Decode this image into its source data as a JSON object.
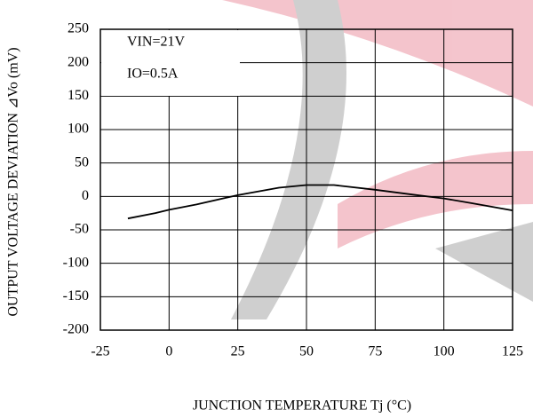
{
  "chart_data": {
    "type": "line",
    "x_label": "JUNCTION TEMPERATURE Tj (°C)",
    "y_label": "OUTPUT VOLTAGE DEVIATION ⊿Vo (mV)",
    "annotations": [
      "VIN=21V",
      "IO=0.5A"
    ],
    "x": [
      -15,
      -5,
      0,
      10,
      25,
      40,
      50,
      60,
      75,
      90,
      100,
      110,
      125
    ],
    "series": [
      {
        "color": "#000000",
        "values": [
          -33,
          -25,
          -20,
          -12,
          2,
          13,
          17,
          17,
          10,
          2,
          -3,
          -10,
          -21
        ]
      }
    ],
    "xlim": [
      -25,
      125
    ],
    "xticks": [
      -25,
      0,
      25,
      50,
      75,
      100,
      125
    ],
    "ylim": [
      -200,
      250
    ],
    "yticks": [
      -200,
      -150,
      -100,
      -50,
      0,
      50,
      100,
      150,
      200,
      250
    ],
    "grid": true
  }
}
